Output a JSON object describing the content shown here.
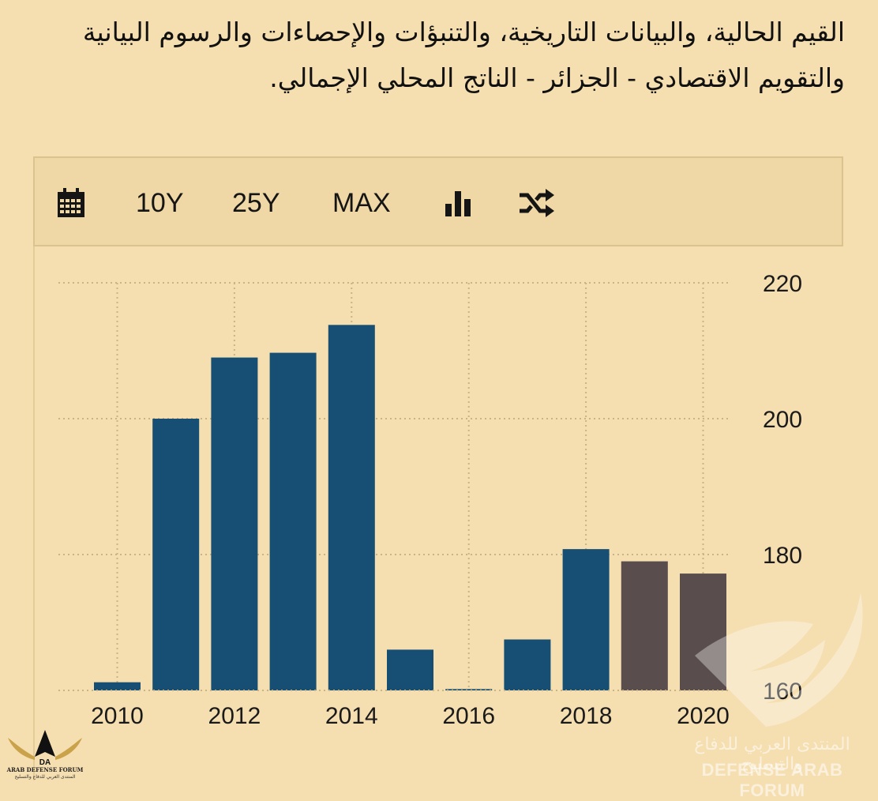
{
  "heading": "القيم الحالية، والبيانات التاريخية، والتنبؤات والإحصاءات والرسوم البيانية والتقويم الاقتصادي - الجزائر - الناتج المحلي الإجمالي.",
  "toolbar": {
    "calendar_icon": "calendar-icon",
    "btn_10y": "10Y",
    "btn_25y": "25Y",
    "btn_max": "MAX",
    "bar_chart_icon": "bar-chart-icon",
    "shuffle_icon": "shuffle-icon"
  },
  "colors": {
    "actual": "#164f73",
    "forecast": "#5a4d4d",
    "grid": "#c8b487",
    "background": "#f5deb0"
  },
  "chart_data": {
    "type": "bar",
    "categories": [
      "2010",
      "2011",
      "2012",
      "2013",
      "2014",
      "2015",
      "2016",
      "2017",
      "2018",
      "2019",
      "2020"
    ],
    "series": [
      {
        "values": [
          161.2,
          200.0,
          209.0,
          209.7,
          213.8,
          166.0,
          160.2,
          167.5,
          180.8,
          179.0,
          177.2
        ]
      }
    ],
    "forecast_from_index": 9,
    "x_tick_labels": [
      "2010",
      "2012",
      "2014",
      "2016",
      "2018",
      "2020"
    ],
    "y_ticks": [
      160,
      180,
      200,
      220
    ],
    "ylim": [
      160,
      220
    ],
    "y_axis_position": "right",
    "grid": true
  },
  "watermark": {
    "arabic": "المنتدى العربي للدفاع والتسليح",
    "english": "DEFENSE ARAB FORUM"
  },
  "logo": {
    "title": "ARAB DEFENSE FORUM",
    "subtitle": "المنتدى العربي للدفاع والتسليح"
  }
}
